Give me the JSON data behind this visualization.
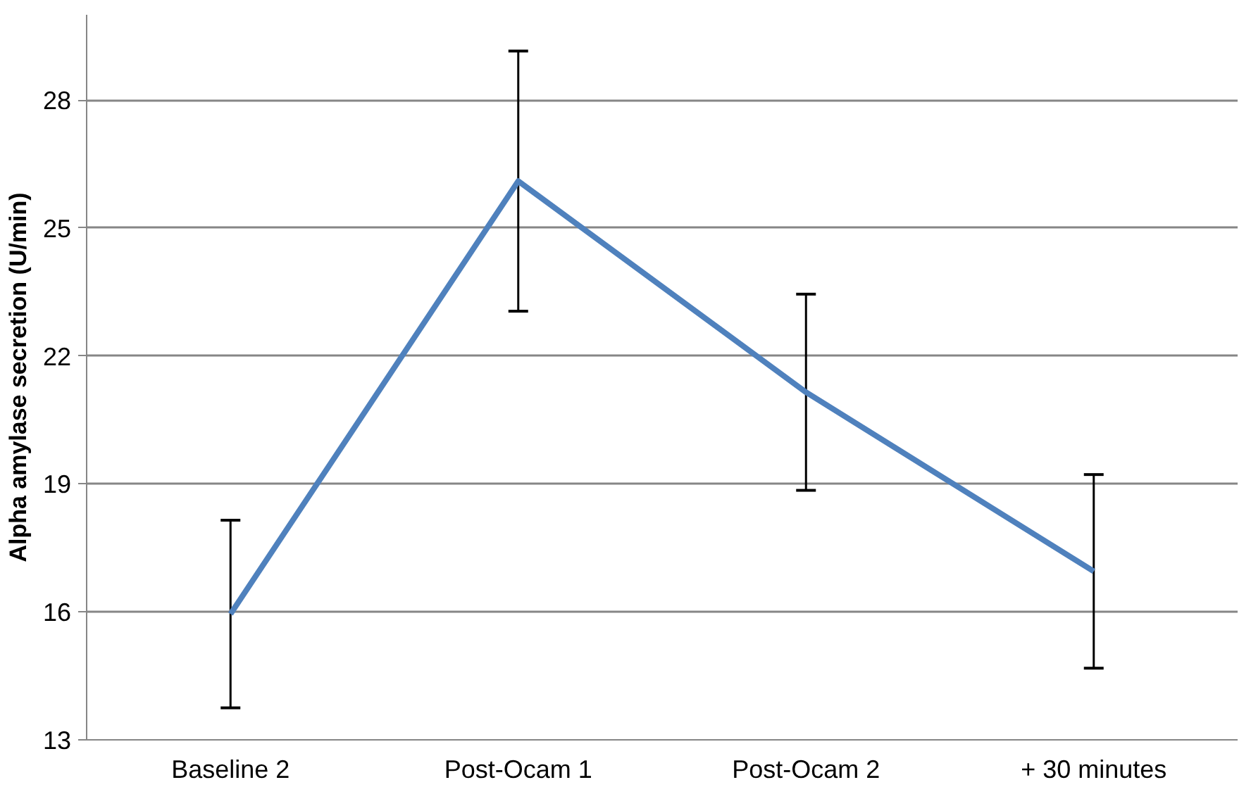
{
  "chart_data": {
    "type": "line",
    "ylabel": "Alpha amylase secretion (U/min)",
    "categories": [
      "Baseline 2",
      "Post-Ocam 1",
      "Post-Ocam 2",
      "+ 30 minutes"
    ],
    "series": [
      {
        "color": "#4f81bd",
        "values": [
          15.95,
          26.1,
          21.15,
          16.95
        ],
        "errors": [
          2.2,
          3.05,
          2.3,
          2.27
        ]
      }
    ],
    "ylim": [
      13,
      30
    ],
    "yticks": [
      13,
      16,
      19,
      22,
      25,
      28
    ],
    "grid": "y",
    "marker": "none",
    "line_style": "solid"
  }
}
